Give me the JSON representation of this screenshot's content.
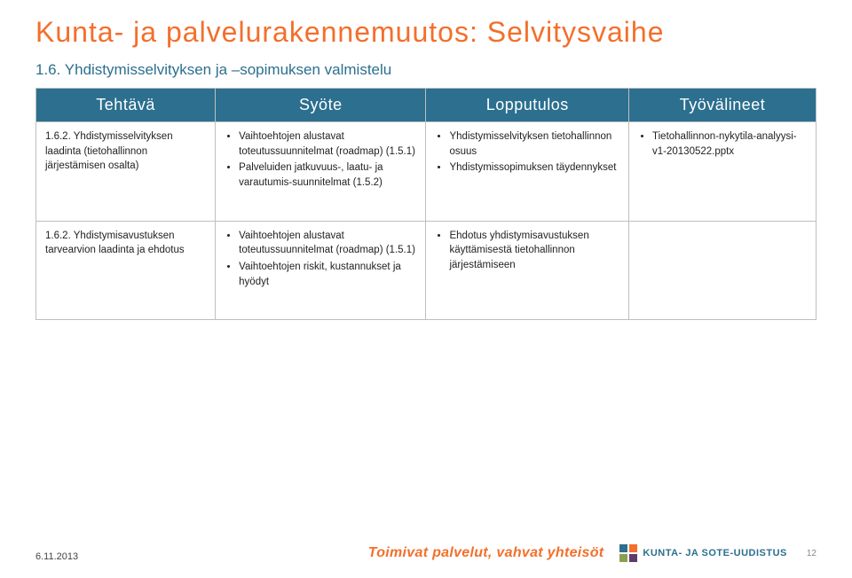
{
  "title": "Kunta- ja palvelurakennemuutos: Selvitysvaihe",
  "subtitle": "1.6. Yhdistymisselvityksen ja –sopimuksen valmistelu",
  "columns": [
    "Tehtävä",
    "Syöte",
    "Lopputulos",
    "Työvälineet"
  ],
  "rows": [
    {
      "task": "1.6.2. Yhdistymisselvityksen laadinta (tietohallinnon järjestämisen osalta)",
      "input": [
        "Vaihtoehtojen alustavat toteutussuunnitelmat (roadmap) (1.5.1)",
        "Palveluiden jatkuvuus-, laatu- ja varautumis-suunnitelmat (1.5.2)"
      ],
      "output": [
        "Yhdistymisselvityksen tietohallinnon osuus",
        "Yhdistymissopimuksen täydennykset"
      ],
      "tools": [
        "Tietohallinnon-nykytila-analyysi-v1-20130522.pptx"
      ]
    },
    {
      "task": "1.6.2. Yhdistymisavustuksen tarvearvion laadinta ja ehdotus",
      "input": [
        "Vaihtoehtojen alustavat toteutussuunnitelmat (roadmap) (1.5.1)",
        "Vaihtoehtojen riskit, kustannukset ja hyödyt"
      ],
      "output": [
        "Ehdotus yhdistymisavustuksen käyttämisestä tietohallinnon järjestämiseen"
      ],
      "tools": []
    }
  ],
  "footer": {
    "date": "6.11.2013",
    "slogan": "Toimivat palvelut, vahvat yhteisöt",
    "logo_text": "KUNTA- JA SOTE-UUDISTUS",
    "page_number": "12"
  },
  "colors": {
    "title": "#f36f2b",
    "subtitle": "#2c6f8f",
    "header_bg": "#2c6f8f",
    "header_fg": "#ffffff",
    "border": "#bfbfbf"
  }
}
